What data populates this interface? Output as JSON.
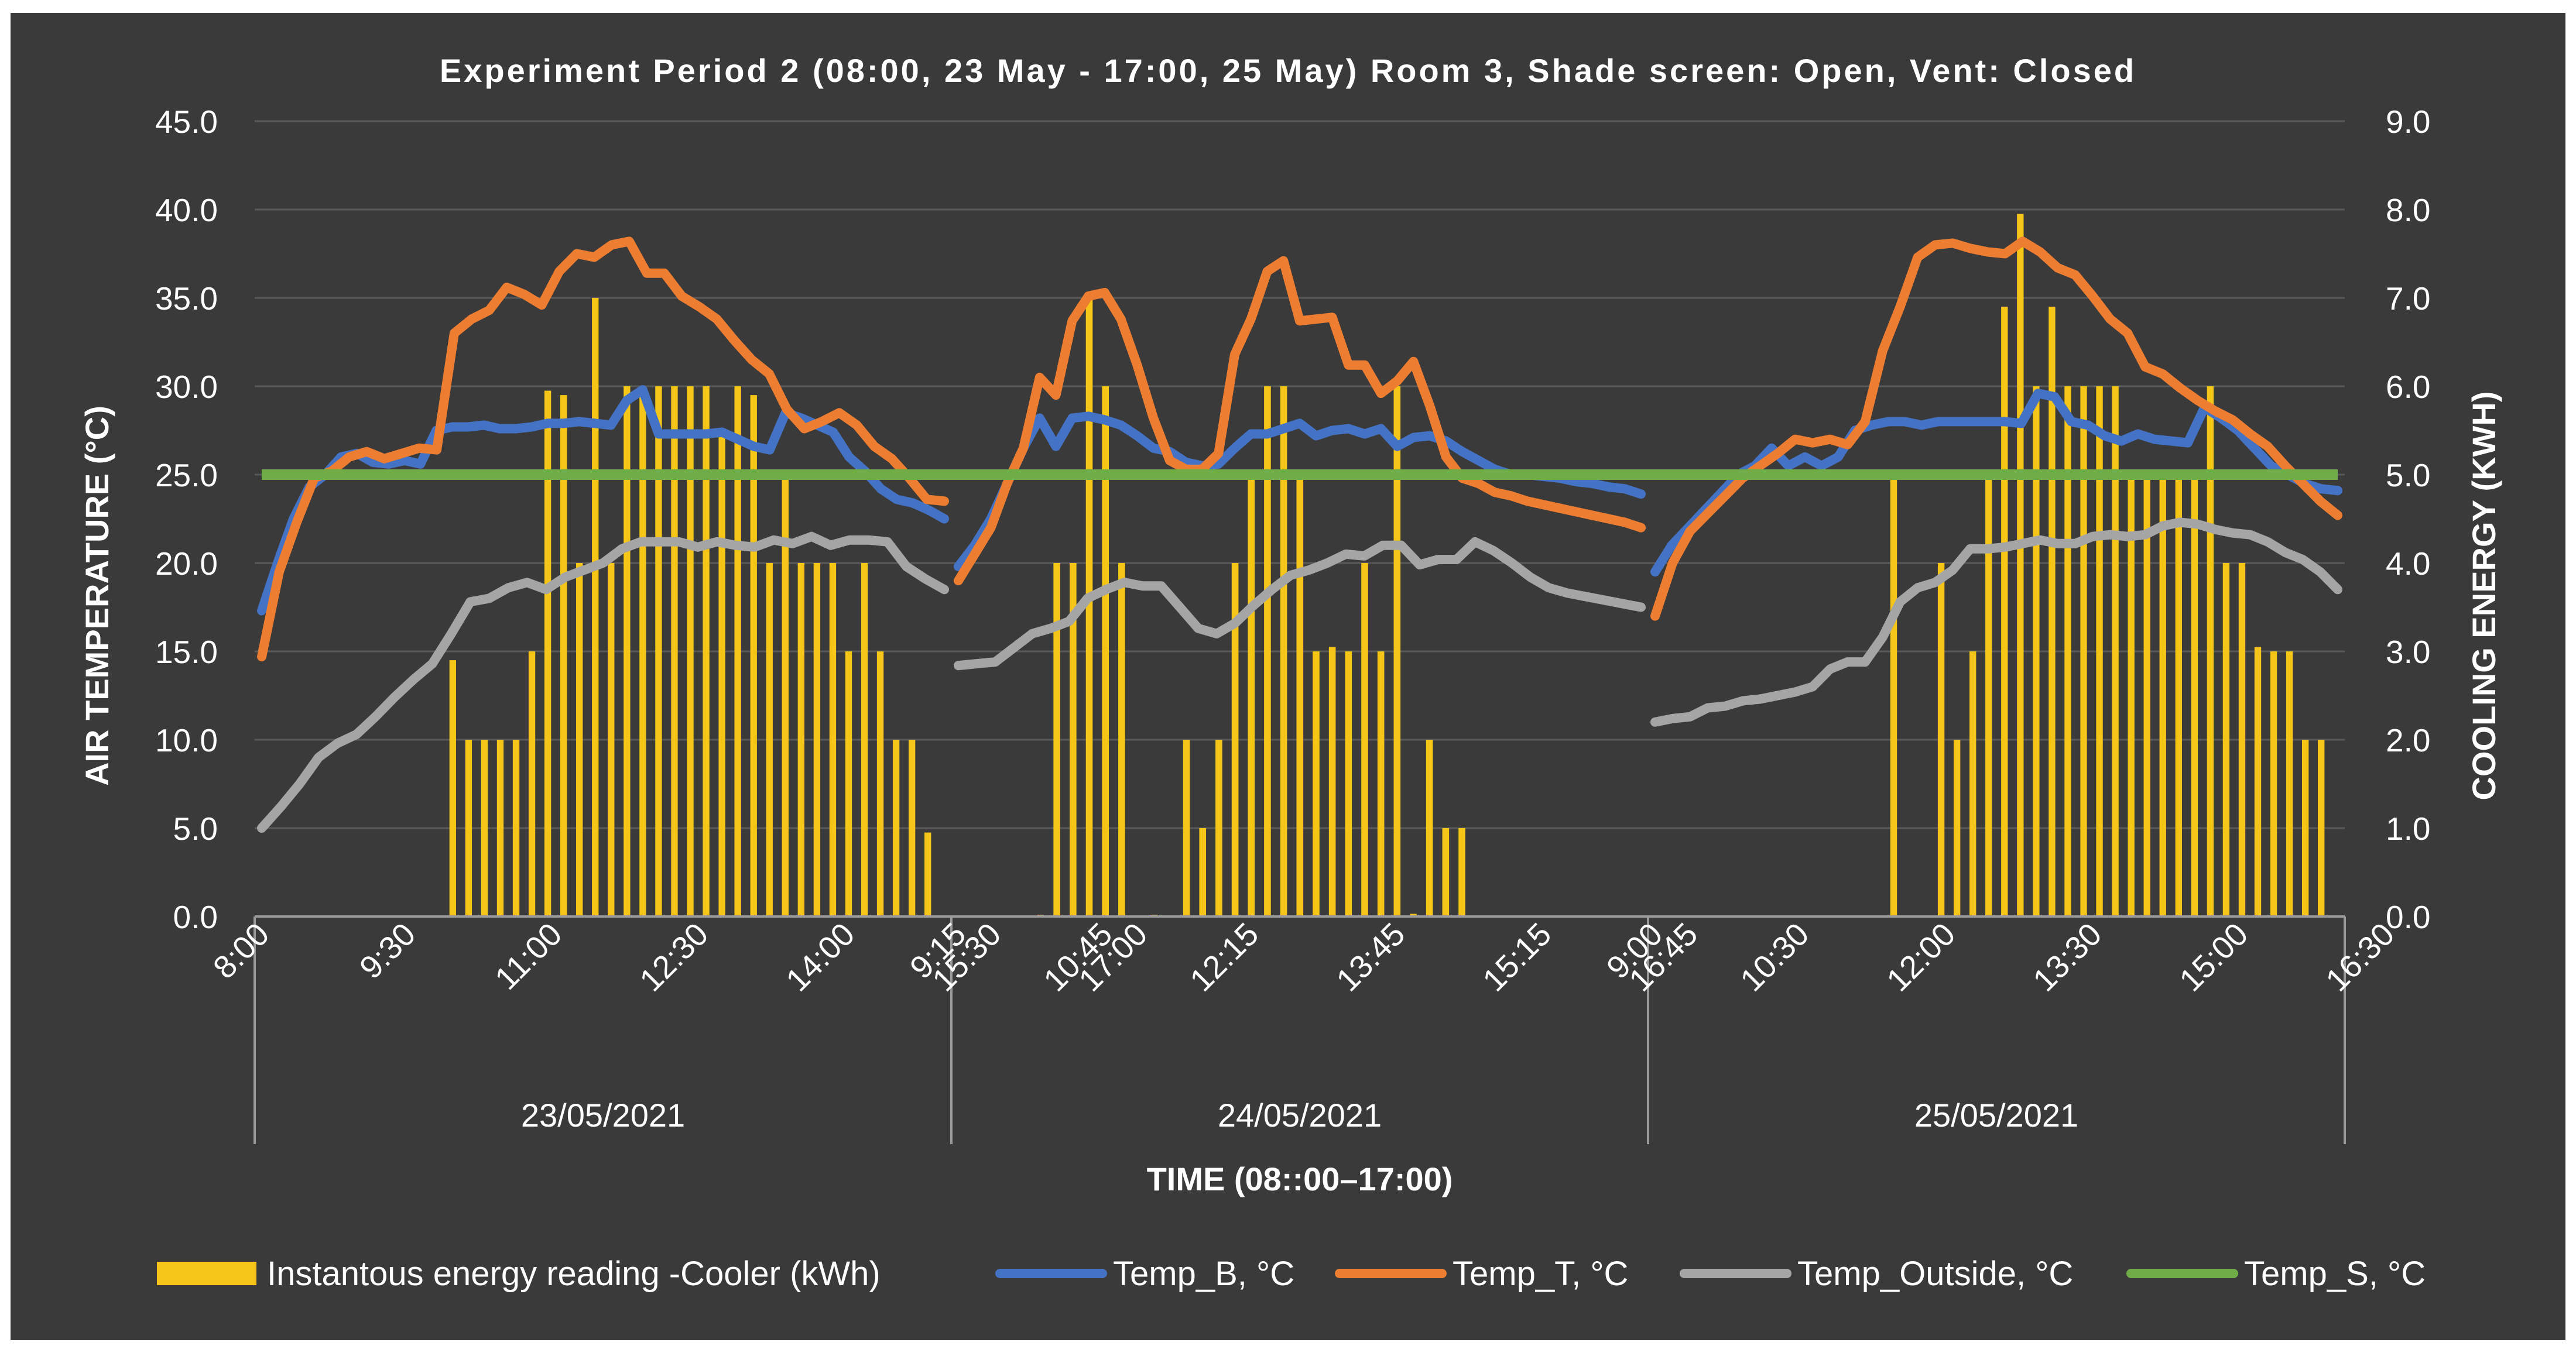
{
  "chart_data": {
    "type": "combo-bar-line",
    "title": "Experiment Period 2 (08:00, 23 May - 17:00, 25 May) Room 3, Shade screen: Open, Vent: Closed",
    "ylabel": "AIR TEMPERATURE (°C)",
    "y2label": "COOLING ENERGY (KWH)",
    "xlabel": "TIME (08::00–17:00)",
    "ylim": [
      0,
      45
    ],
    "y2lim": [
      0,
      9
    ],
    "yticks": [
      "0.0",
      "5.0",
      "10.0",
      "15.0",
      "20.0",
      "25.0",
      "30.0",
      "35.0",
      "40.0",
      "45.0"
    ],
    "y2ticks": [
      "0.0",
      "1.0",
      "2.0",
      "3.0",
      "4.0",
      "5.0",
      "6.0",
      "7.0",
      "8.0",
      "9.0"
    ],
    "days": [
      {
        "label": "23/05/2021",
        "ticks": [
          "8:00",
          "9:30",
          "11:00",
          "12:30",
          "14:00",
          "15:30",
          "17:00"
        ]
      },
      {
        "label": "24/05/2021",
        "ticks": [
          "9:15",
          "10:45",
          "12:15",
          "13:45",
          "15:15",
          "16:45"
        ]
      },
      {
        "label": "25/05/2021",
        "ticks": [
          "9:00",
          "10:30",
          "12:00",
          "13:30",
          "15:00",
          "16:30"
        ]
      }
    ],
    "legend": [
      "Instantous energy reading -Cooler (kWh)",
      "Temp_B, °C",
      "Temp_T, °C",
      "Temp_Outside, °C",
      "Temp_S, °C"
    ],
    "colors": {
      "bar": "#f5c518",
      "temp_b": "#4472c4",
      "temp_t": "#ed7d31",
      "temp_out": "#a5a5a5",
      "temp_s": "#70ad47"
    },
    "temp_s": 25.0,
    "energy_kwh": [
      [
        0,
        0,
        0,
        0,
        0,
        0,
        0,
        0,
        0,
        0,
        0,
        0,
        2.9,
        2.0,
        2.0,
        2.0,
        2.0,
        3.0,
        5.95,
        5.9,
        4.0,
        7.0,
        4.0,
        6.0,
        6.0,
        6.0,
        6.0,
        6.0,
        6.0,
        5.5,
        6.0,
        5.9,
        4.0,
        5.0,
        4.0,
        4.0,
        4.0,
        3.0,
        4.0,
        3.0,
        2.0,
        2.0,
        0.95,
        0
      ],
      [
        0,
        0,
        0,
        0,
        0,
        0.02,
        4.0,
        4.0,
        7.0,
        6.0,
        4.0,
        0,
        0.02,
        0,
        2.0,
        1.0,
        2.0,
        4.0,
        5.0,
        6.0,
        6.0,
        5.0,
        3.0,
        3.05,
        3.0,
        4.0,
        3.0,
        6.0,
        0.03,
        2.0,
        1.0,
        1.0,
        0,
        0,
        0,
        0,
        0,
        0,
        0,
        0,
        0,
        0,
        0
      ],
      [
        0,
        0,
        0,
        0,
        0,
        0,
        0,
        0,
        0,
        0,
        0,
        0,
        0,
        0,
        0,
        4.95,
        0,
        0,
        4.0,
        2.0,
        3.0,
        5.0,
        6.9,
        7.95,
        6.0,
        6.9,
        6.0,
        6.0,
        6.0,
        6.0,
        5.0,
        5.0,
        5.0,
        5.0,
        5.0,
        6.0,
        4.0,
        4.0,
        3.05,
        3.0,
        3.0,
        2.0,
        2.0,
        0
      ]
    ],
    "temp_b": [
      [
        17.3,
        20,
        22.5,
        24.3,
        25,
        26,
        26.2,
        25.7,
        25.6,
        25.8,
        25.6,
        27.5,
        27.7,
        27.7,
        27.8,
        27.6,
        27.6,
        27.7,
        27.9,
        27.9,
        28,
        27.9,
        27.8,
        29.2,
        29.8,
        27.3,
        27.3,
        27.3,
        27.3,
        27.4,
        27,
        26.6,
        26.4,
        28.5,
        28.2,
        27.8,
        27.4,
        26,
        25.2,
        24.2,
        23.6,
        23.4,
        23,
        22.5
      ],
      [
        19.8,
        21,
        22.5,
        24.5,
        26.5,
        28.2,
        26.6,
        28.2,
        28.3,
        28.1,
        27.8,
        27.2,
        26.5,
        26.3,
        25.7,
        25.5,
        25.6,
        26.5,
        27.3,
        27.3,
        27.6,
        27.9,
        27.2,
        27.5,
        27.6,
        27.3,
        27.6,
        26.6,
        27.1,
        27.2,
        26.9,
        26.3,
        25.8,
        25.3,
        25,
        25,
        24.9,
        24.8,
        24.6,
        24.5,
        24.3,
        24.2,
        23.9
      ],
      [
        19.5,
        21,
        22,
        23,
        24,
        25,
        25.5,
        26.5,
        25.5,
        26,
        25.5,
        26,
        27.5,
        27.8,
        28,
        28,
        27.8,
        28,
        28,
        28,
        28,
        28,
        27.9,
        29.6,
        29.4,
        28,
        27.8,
        27.2,
        26.9,
        27.3,
        27,
        26.9,
        26.8,
        28.8,
        28.2,
        27.5,
        26.5,
        25.5,
        25,
        24.5,
        24.2,
        24.1
      ]
    ],
    "temp_t": [
      [
        14.7,
        19.5,
        22.3,
        24.8,
        25.2,
        26,
        26.3,
        25.9,
        26.2,
        26.5,
        26.4,
        33,
        33.8,
        34.3,
        35.6,
        35.2,
        34.6,
        36.5,
        37.5,
        37.3,
        38,
        38.2,
        36.4,
        36.4,
        35.1,
        34.5,
        33.8,
        32.6,
        31.5,
        30.7,
        28.7,
        27.6,
        28,
        28.5,
        27.8,
        26.6,
        25.9,
        24.8,
        23.6,
        23.5
      ],
      [
        19,
        20.5,
        22,
        24.5,
        26.5,
        30.5,
        29.5,
        33.7,
        35.1,
        35.3,
        33.8,
        31.2,
        28.2,
        25.8,
        25.3,
        25.3,
        26.2,
        31.8,
        33.8,
        36.5,
        37.1,
        33.7,
        33.8,
        33.9,
        31.2,
        31.2,
        29.6,
        30.3,
        31.4,
        28.9,
        26,
        24.8,
        24.5,
        24,
        23.8,
        23.5,
        23.3,
        23.1,
        22.9,
        22.7,
        22.5,
        22.3,
        22
      ],
      [
        17,
        20,
        21.8,
        22.8,
        23.8,
        24.8,
        25.5,
        26.2,
        27,
        26.8,
        27,
        26.7,
        28,
        32,
        34.5,
        37.3,
        38,
        38.1,
        37.8,
        37.6,
        37.5,
        38.2,
        37.6,
        36.7,
        36.3,
        35.1,
        33.8,
        33,
        31.1,
        30.7,
        29.9,
        29.2,
        28.6,
        28.1,
        27.3,
        26.6,
        25.5,
        24.5,
        23.5,
        22.7
      ]
    ],
    "temp_out": [
      [
        5,
        6.2,
        7.5,
        9,
        9.8,
        10.3,
        11.3,
        12.4,
        13.4,
        14.3,
        16,
        17.8,
        18,
        18.6,
        18.9,
        18.5,
        19.2,
        19.6,
        20,
        20.8,
        21.2,
        21.2,
        21.2,
        20.9,
        21.2,
        21,
        20.9,
        21.3,
        21.1,
        21.5,
        21,
        21.3,
        21.3,
        21.2,
        19.8,
        19.1,
        18.5
      ],
      [
        14.2,
        14.3,
        14.4,
        15.2,
        16,
        16.3,
        16.7,
        18,
        18.5,
        18.9,
        18.7,
        18.7,
        17.5,
        16.3,
        16,
        16.6,
        17.6,
        18.5,
        19.3,
        19.6,
        20,
        20.5,
        20.4,
        21,
        21,
        19.9,
        20.2,
        20.2,
        21.2,
        20.7,
        20,
        19.2,
        18.6,
        18.3,
        18.1,
        17.9,
        17.7,
        17.5
      ],
      [
        11,
        11.2,
        11.3,
        11.8,
        11.9,
        12.2,
        12.3,
        12.5,
        12.7,
        13,
        14,
        14.4,
        14.4,
        15.8,
        17.8,
        18.6,
        18.9,
        19.6,
        20.8,
        20.8,
        20.9,
        21.1,
        21.3,
        21.1,
        21.1,
        21.5,
        21.6,
        21.5,
        21.6,
        22.1,
        22.3,
        22.2,
        21.9,
        21.7,
        21.6,
        21.2,
        20.6,
        20.2,
        19.5,
        18.5
      ]
    ]
  }
}
